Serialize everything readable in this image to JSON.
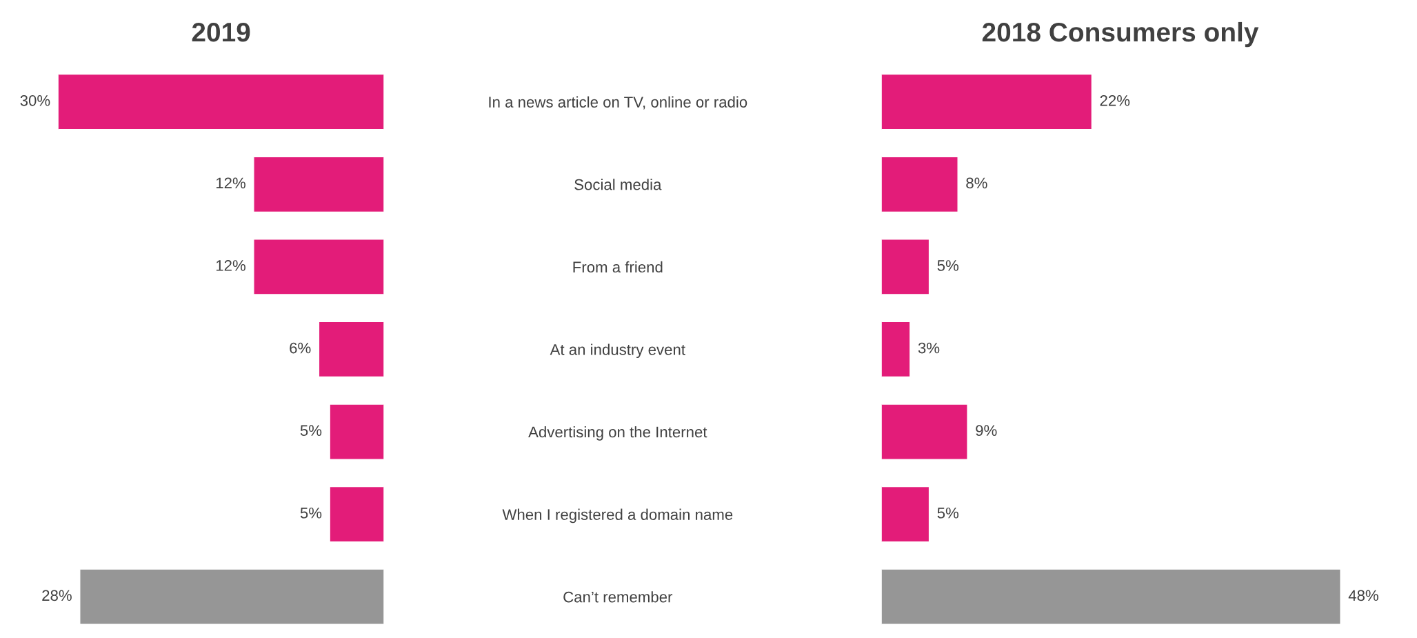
{
  "chart_data": [
    {
      "type": "bar",
      "orientation": "horizontal",
      "title": "2019",
      "categories": [
        "In a news article on TV, online or radio",
        "Social media",
        "From a friend",
        "At an industry event",
        "Advertising on the Internet",
        "When I registered a domain name",
        "Can’t remember"
      ],
      "values": [
        30,
        12,
        12,
        6,
        5,
        5,
        28
      ],
      "value_labels": [
        "30%",
        "12%",
        "12%",
        "6%",
        "5%",
        "5%",
        "28%"
      ],
      "colors": [
        "#e31c79",
        "#e31c79",
        "#e31c79",
        "#e31c79",
        "#e31c79",
        "#e31c79",
        "#969696"
      ],
      "tick_labels": "y",
      "grid": false,
      "legend": false
    },
    {
      "type": "bar",
      "orientation": "horizontal",
      "title": "2018 Consumers only",
      "categories": [
        null,
        null,
        null,
        null,
        null,
        null,
        null
      ],
      "values": [
        22,
        8,
        5,
        3,
        9,
        5,
        48
      ],
      "value_labels": [
        "22%",
        "8%",
        "5%",
        "3%",
        "9%",
        "5%",
        "48%"
      ],
      "colors": [
        "#e31c79",
        "#e31c79",
        "#e31c79",
        "#e31c79",
        "#e31c79",
        "#e31c79",
        "#969696"
      ],
      "tick_labels": false,
      "grid": false,
      "legend": false
    }
  ]
}
